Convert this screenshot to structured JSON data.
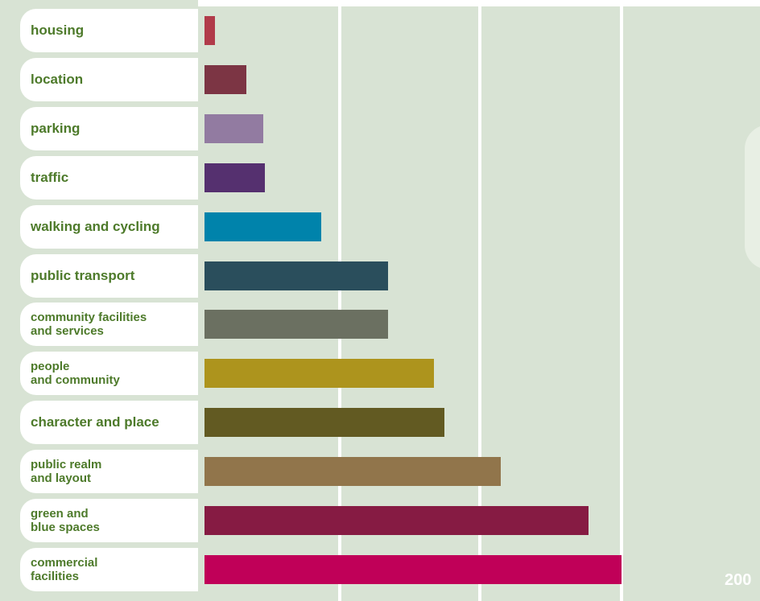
{
  "chart_data": {
    "type": "bar",
    "orientation": "horizontal",
    "categories": [
      "housing",
      "location",
      "parking",
      "traffic",
      "walking and cycling",
      "public transport",
      "community facilities\nand services",
      "people\nand community",
      "character and place",
      "public realm\nand layout",
      "green and\nblue spaces",
      "commercial\nfacilities"
    ],
    "values": [
      5,
      20,
      28,
      29,
      56,
      88,
      88,
      110,
      115,
      142,
      184,
      200
    ],
    "colors": [
      "#b13b4a",
      "#7c3544",
      "#927ba1",
      "#55306f",
      "#0083ab",
      "#2a4e5c",
      "#6b7061",
      "#ad941d",
      "#625a22",
      "#91754b",
      "#861b43",
      "#c00058"
    ],
    "xlim": [
      0,
      265
    ],
    "tick_values": [
      200
    ],
    "tick_labels": [
      "200"
    ],
    "grid": true,
    "title": "",
    "xlabel": "",
    "ylabel": ""
  }
}
